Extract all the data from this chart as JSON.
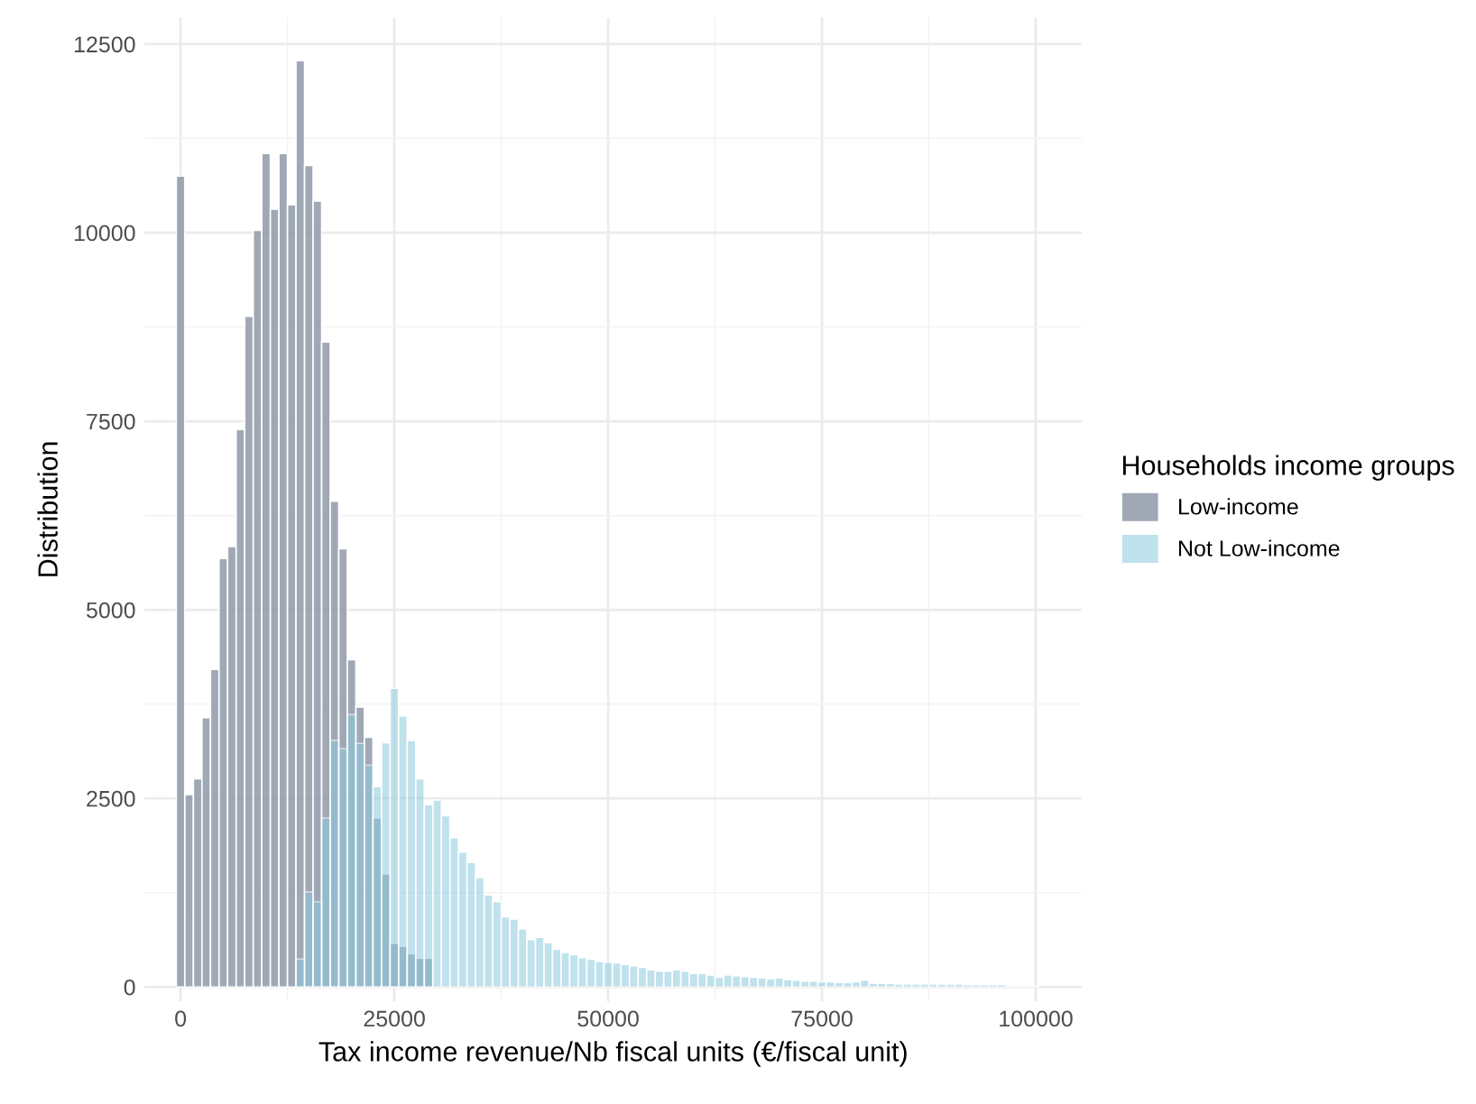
{
  "chart_data": {
    "type": "histogram",
    "xlabel": "Tax income revenue/Nb fiscal units (€/fiscal unit)",
    "ylabel": "Distribution",
    "legend_title": "Households income groups",
    "bins": [
      -500,
      500,
      1500,
      2500,
      3500,
      4500,
      5500,
      6500,
      7500,
      8500,
      9500,
      10500,
      11500,
      12500,
      13500,
      14500,
      15500,
      16500,
      17500,
      18500,
      19500,
      20500,
      21500,
      22500,
      23500,
      24500,
      25500,
      26500,
      27500,
      28500,
      29500,
      30500,
      31500,
      32500,
      33500,
      34500,
      35500,
      36500,
      37500,
      38500,
      39500,
      40500,
      41500,
      42500,
      43500,
      44500,
      45500,
      46500,
      47500,
      48500,
      49500,
      50500,
      51500,
      52500,
      53500,
      54500,
      55500,
      56500,
      57500,
      58500,
      59500,
      60500,
      61500,
      62500,
      63500,
      64500,
      65500,
      66500,
      67500,
      68500,
      69500,
      70500,
      71500,
      72500,
      73500,
      74500,
      75500,
      76500,
      77500,
      78500,
      79500,
      80500,
      81500,
      82500,
      83500,
      84500,
      85500,
      86500,
      87500,
      88500,
      89500,
      90500,
      91500,
      92500,
      93500,
      94500,
      95500,
      96500,
      97500,
      98500,
      99500,
      100500
    ],
    "series": [
      {
        "name": "Low-income",
        "color": "#8f99a8",
        "values": [
          10750,
          2550,
          2760,
          3570,
          4210,
          5680,
          5840,
          7390,
          8890,
          10030,
          11050,
          10310,
          11050,
          10370,
          12280,
          10890,
          10420,
          8550,
          6440,
          5810,
          4340,
          3710,
          3310,
          2240,
          1500,
          580,
          540,
          440,
          380,
          380,
          null,
          null,
          null,
          null,
          null,
          null,
          null,
          null,
          null,
          null,
          null,
          null,
          null,
          null,
          null,
          null,
          null,
          null,
          null,
          null,
          null,
          null,
          null,
          null,
          null,
          null,
          null,
          null,
          null,
          null,
          null,
          null,
          null,
          null,
          null,
          null,
          null,
          null,
          null,
          null,
          null,
          null,
          null,
          null,
          null,
          null,
          null,
          null,
          null,
          null,
          null,
          null,
          null,
          null,
          null,
          null,
          null,
          null,
          null,
          null,
          null,
          null,
          null,
          null,
          null,
          null,
          null,
          null,
          null,
          null,
          null
        ]
      },
      {
        "name": "Not Low-income",
        "color": "#8ccbe0",
        "values": [
          null,
          null,
          null,
          null,
          null,
          null,
          null,
          null,
          null,
          null,
          null,
          null,
          null,
          null,
          370,
          1260,
          1130,
          2240,
          3270,
          3160,
          3610,
          3230,
          2940,
          2660,
          3240,
          3960,
          3590,
          3270,
          2760,
          2420,
          2480,
          2270,
          1980,
          1790,
          1650,
          1450,
          1220,
          1130,
          930,
          900,
          770,
          630,
          660,
          590,
          500,
          460,
          430,
          390,
          370,
          340,
          330,
          320,
          300,
          280,
          260,
          230,
          210,
          210,
          230,
          210,
          180,
          180,
          160,
          130,
          160,
          150,
          140,
          130,
          120,
          110,
          120,
          100,
          90,
          80,
          80,
          70,
          70,
          60,
          60,
          70,
          90,
          50,
          50,
          50,
          40,
          40,
          40,
          40,
          40,
          40,
          40,
          40,
          30,
          30,
          30,
          30,
          30,
          20,
          20,
          10,
          10
        ]
      }
    ],
    "xlim": [
      -4200,
      105400
    ],
    "ylim": [
      -190,
      12850
    ],
    "xticks": [
      0,
      25000,
      50000,
      75000,
      100000
    ],
    "yticks": [
      0,
      2500,
      5000,
      7500,
      10000,
      12500
    ],
    "grid": true,
    "legend": "right"
  }
}
